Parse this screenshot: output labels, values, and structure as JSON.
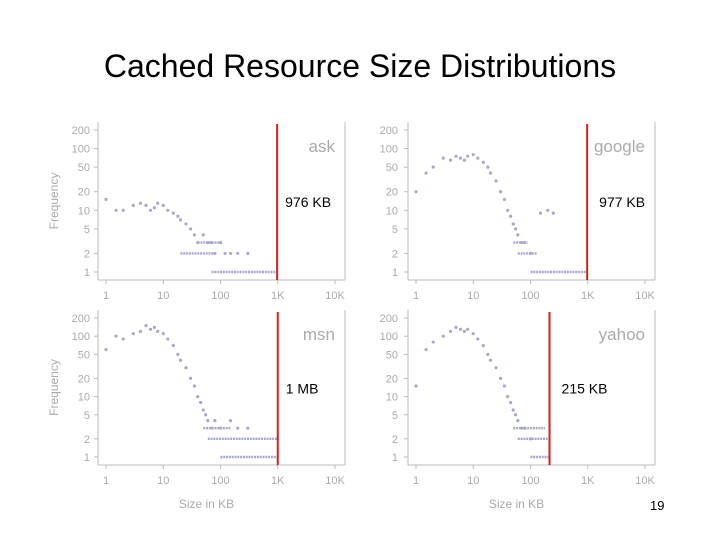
{
  "slide": {
    "title": "Cached Resource Size Distributions",
    "page_number": "19"
  },
  "colors": {
    "points": "#a8a8cc",
    "cutoff": "#cc2222",
    "axis": "#bbbbbb",
    "ticks": "#aaaaaa"
  },
  "chart_data": [
    {
      "type": "scatter",
      "name": "ask",
      "cutoff_kb": 976,
      "cutoff_label": "976 KB",
      "x_scale": "log",
      "y_scale": "log",
      "xlim": [
        1,
        10000
      ],
      "ylim": [
        1,
        200
      ],
      "x_ticks": [
        "1",
        "10",
        "100",
        "1K",
        "10K"
      ],
      "y_ticks": [
        "1",
        "2",
        "5",
        "10",
        "20",
        "50",
        "100",
        "200"
      ],
      "xlabel": "",
      "ylabel": "Frequency",
      "points": [
        [
          1,
          15
        ],
        [
          1.5,
          10
        ],
        [
          2,
          10
        ],
        [
          3,
          12
        ],
        [
          4,
          13
        ],
        [
          5,
          12
        ],
        [
          6,
          10
        ],
        [
          7,
          11
        ],
        [
          8,
          13
        ],
        [
          10,
          12
        ],
        [
          12,
          10
        ],
        [
          15,
          9
        ],
        [
          18,
          8
        ],
        [
          20,
          7
        ],
        [
          25,
          6
        ],
        [
          30,
          5
        ],
        [
          35,
          4
        ],
        [
          40,
          3
        ],
        [
          50,
          4
        ],
        [
          60,
          3
        ],
        [
          70,
          3
        ],
        [
          80,
          2
        ],
        [
          100,
          3
        ],
        [
          120,
          2
        ],
        [
          150,
          2
        ],
        [
          200,
          2
        ],
        [
          300,
          2
        ]
      ],
      "flat": [
        [
          70,
          1000,
          1
        ],
        [
          20,
          80,
          2
        ],
        [
          40,
          110,
          3
        ]
      ]
    },
    {
      "type": "scatter",
      "name": "google",
      "cutoff_kb": 977,
      "cutoff_label": "977 KB",
      "x_scale": "log",
      "y_scale": "log",
      "xlim": [
        1,
        10000
      ],
      "ylim": [
        1,
        200
      ],
      "x_ticks": [
        "1",
        "10",
        "100",
        "1K",
        "10K"
      ],
      "y_ticks": [
        "1",
        "2",
        "5",
        "10",
        "20",
        "50",
        "100",
        "200"
      ],
      "xlabel": "",
      "ylabel": "",
      "points": [
        [
          1,
          20
        ],
        [
          1.5,
          40
        ],
        [
          2,
          50
        ],
        [
          3,
          70
        ],
        [
          4,
          65
        ],
        [
          5,
          75
        ],
        [
          6,
          70
        ],
        [
          7,
          65
        ],
        [
          8,
          75
        ],
        [
          10,
          80
        ],
        [
          12,
          70
        ],
        [
          15,
          60
        ],
        [
          18,
          50
        ],
        [
          20,
          40
        ],
        [
          25,
          30
        ],
        [
          30,
          20
        ],
        [
          35,
          15
        ],
        [
          40,
          10
        ],
        [
          45,
          8
        ],
        [
          50,
          6
        ],
        [
          55,
          5
        ],
        [
          60,
          4
        ],
        [
          70,
          3
        ],
        [
          80,
          3
        ],
        [
          100,
          2
        ],
        [
          150,
          9
        ],
        [
          200,
          10
        ],
        [
          250,
          9
        ]
      ],
      "flat": [
        [
          100,
          1000,
          1
        ],
        [
          60,
          130,
          2
        ],
        [
          50,
          90,
          3
        ]
      ]
    },
    {
      "type": "scatter",
      "name": "msn",
      "cutoff_kb": 1000,
      "cutoff_label": "1 MB",
      "x_scale": "log",
      "y_scale": "log",
      "xlim": [
        1,
        10000
      ],
      "ylim": [
        1,
        200
      ],
      "x_ticks": [
        "1",
        "10",
        "100",
        "1K",
        "10K"
      ],
      "y_ticks": [
        "1",
        "2",
        "5",
        "10",
        "20",
        "50",
        "100",
        "200"
      ],
      "xlabel": "Size in KB",
      "ylabel": "Frequency",
      "points": [
        [
          1,
          60
        ],
        [
          1.5,
          100
        ],
        [
          2,
          90
        ],
        [
          3,
          110
        ],
        [
          4,
          120
        ],
        [
          5,
          150
        ],
        [
          6,
          130
        ],
        [
          7,
          140
        ],
        [
          8,
          120
        ],
        [
          10,
          110
        ],
        [
          12,
          90
        ],
        [
          15,
          70
        ],
        [
          18,
          50
        ],
        [
          20,
          40
        ],
        [
          25,
          30
        ],
        [
          30,
          20
        ],
        [
          35,
          15
        ],
        [
          40,
          10
        ],
        [
          45,
          8
        ],
        [
          50,
          6
        ],
        [
          55,
          5
        ],
        [
          60,
          4
        ],
        [
          70,
          3
        ],
        [
          80,
          4
        ],
        [
          100,
          3
        ],
        [
          150,
          4
        ],
        [
          200,
          3
        ],
        [
          300,
          3
        ]
      ],
      "flat": [
        [
          100,
          1000,
          1
        ],
        [
          60,
          1000,
          2
        ],
        [
          50,
          150,
          3
        ]
      ]
    },
    {
      "type": "scatter",
      "name": "yahoo",
      "cutoff_kb": 215,
      "cutoff_label": "215 KB",
      "x_scale": "log",
      "y_scale": "log",
      "xlim": [
        1,
        10000
      ],
      "ylim": [
        1,
        200
      ],
      "x_ticks": [
        "1",
        "10",
        "100",
        "1K",
        "10K"
      ],
      "y_ticks": [
        "1",
        "2",
        "5",
        "10",
        "20",
        "50",
        "100",
        "200"
      ],
      "xlabel": "Size in KB",
      "ylabel": "",
      "points": [
        [
          1,
          15
        ],
        [
          1.5,
          60
        ],
        [
          2,
          80
        ],
        [
          3,
          100
        ],
        [
          4,
          120
        ],
        [
          5,
          140
        ],
        [
          6,
          130
        ],
        [
          7,
          120
        ],
        [
          8,
          130
        ],
        [
          10,
          110
        ],
        [
          12,
          90
        ],
        [
          15,
          70
        ],
        [
          18,
          50
        ],
        [
          20,
          40
        ],
        [
          25,
          30
        ],
        [
          30,
          20
        ],
        [
          35,
          15
        ],
        [
          40,
          10
        ],
        [
          45,
          8
        ],
        [
          50,
          6
        ],
        [
          55,
          5
        ],
        [
          60,
          4
        ],
        [
          70,
          3
        ],
        [
          80,
          3
        ],
        [
          100,
          2
        ]
      ],
      "flat": [
        [
          100,
          215,
          1
        ],
        [
          60,
          200,
          2
        ],
        [
          50,
          180,
          3
        ]
      ]
    }
  ]
}
